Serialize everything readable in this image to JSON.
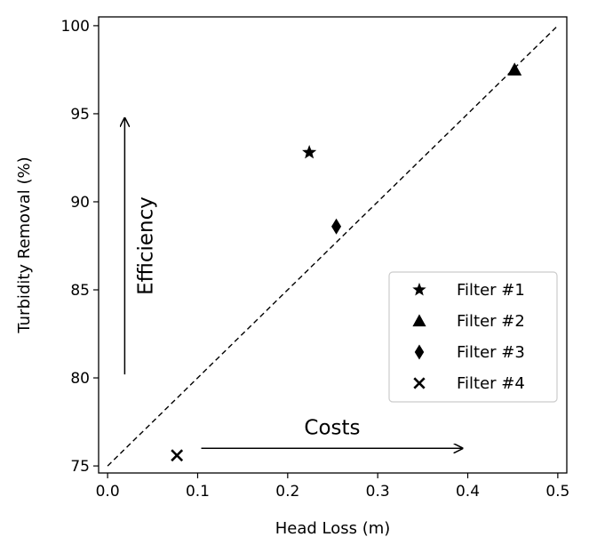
{
  "chart_data": {
    "type": "scatter",
    "xlabel": "Head Loss (m)",
    "ylabel": "Turbidity Removal (%)",
    "xlim": [
      -0.01,
      0.51
    ],
    "ylim": [
      74.6,
      100.5
    ],
    "xticks": [
      "0.0",
      "0.1",
      "0.2",
      "0.3",
      "0.4",
      "0.5"
    ],
    "xtick_values": [
      0,
      0.1,
      0.2,
      0.3,
      0.4,
      0.5
    ],
    "yticks": [
      "75",
      "80",
      "85",
      "90",
      "95",
      "100"
    ],
    "ytick_values": [
      75,
      80,
      85,
      90,
      95,
      100
    ],
    "grid": false,
    "legend_position": "center-right",
    "series": [
      {
        "name": "Filter #1",
        "marker": "star",
        "x": [
          0.224
        ],
        "y": [
          92.8
        ]
      },
      {
        "name": "Filter #2",
        "marker": "triangle",
        "x": [
          0.452
        ],
        "y": [
          97.5
        ]
      },
      {
        "name": "Filter #3",
        "marker": "diamond",
        "x": [
          0.254
        ],
        "y": [
          88.6
        ]
      },
      {
        "name": "Filter #4",
        "marker": "x",
        "x": [
          0.077
        ],
        "y": [
          75.6
        ]
      }
    ],
    "reference_line": {
      "style": "dashed",
      "x": [
        0,
        0.5
      ],
      "y": [
        75,
        100
      ]
    },
    "annotations": [
      {
        "text": "Efficiency",
        "arrow_from": [
          0.019,
          80.2
        ],
        "arrow_to": [
          0.019,
          94.8
        ],
        "orientation": "vertical"
      },
      {
        "text": "Costs",
        "arrow_from": [
          0.104,
          76.0
        ],
        "arrow_to": [
          0.395,
          76.0
        ],
        "orientation": "horizontal"
      }
    ],
    "colors": {
      "marker": "#000000",
      "line": "#000000",
      "legend_border": "#cccccc"
    }
  }
}
